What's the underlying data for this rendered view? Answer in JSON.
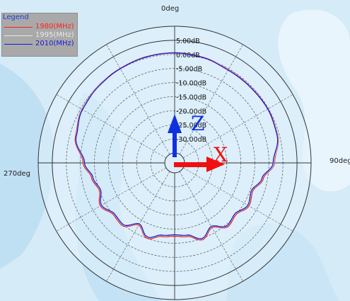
{
  "chart_data": {
    "type": "polar",
    "title": "",
    "angle_labels": [
      "0deg",
      "90deg",
      "270deg"
    ],
    "radial_unit": "dB",
    "ring_labels": [
      "5.00dB",
      "0.00dB",
      "-5.00dB",
      "-10.00dB",
      "-15.00dB",
      "-20.00dB",
      "-25.00dB",
      "-30.00dB"
    ],
    "ring_values": [
      5,
      0,
      -5,
      -10,
      -15,
      -20,
      -25,
      -30
    ],
    "radial_range": [
      -35,
      10
    ],
    "legend": {
      "title": "Legend",
      "placement": "top-left",
      "entries": [
        {
          "label": "1980(MHz)",
          "color": "#ff2020"
        },
        {
          "label": "1995(MHz)",
          "color": "#e8e8e8"
        },
        {
          "label": "2010(MHz)",
          "color": "#1a1ad8"
        }
      ]
    },
    "series": [
      {
        "name": "1980(MHz)",
        "color": "#e81010",
        "angles": [
          0,
          15,
          30,
          45,
          60,
          75,
          90,
          100,
          110,
          120,
          130,
          140,
          150,
          160,
          170,
          180,
          190,
          200,
          210,
          220,
          230,
          240,
          250,
          260,
          270,
          285,
          300,
          315,
          330,
          345,
          360
        ],
        "values": [
          0.6,
          0.3,
          -0.3,
          -0.3,
          -0.2,
          -0.6,
          -3.0,
          -6.5,
          -9.0,
          -8.0,
          -10.0,
          -9.0,
          -12.0,
          -9.5,
          -12.0,
          -12.5,
          -12.0,
          -10.0,
          -13.0,
          -9.5,
          -10.0,
          -8.0,
          -10.0,
          -8.5,
          -6.0,
          -2.0,
          -0.5,
          0.0,
          0.2,
          0.5,
          0.6
        ]
      },
      {
        "name": "1995(MHz)",
        "color": "#d8d8e0",
        "angles": [
          0,
          15,
          30,
          45,
          60,
          75,
          90,
          100,
          110,
          120,
          130,
          140,
          150,
          160,
          170,
          180,
          190,
          200,
          210,
          220,
          230,
          240,
          250,
          260,
          270,
          285,
          300,
          315,
          330,
          345,
          360
        ],
        "values": [
          0.5,
          0.2,
          -0.4,
          -0.4,
          -0.3,
          -0.7,
          -3.2,
          -6.8,
          -9.3,
          -8.3,
          -10.3,
          -9.3,
          -12.3,
          -9.8,
          -12.3,
          -12.8,
          -12.3,
          -10.3,
          -13.3,
          -9.8,
          -10.3,
          -8.3,
          -10.3,
          -8.8,
          -6.3,
          -2.2,
          -0.6,
          -0.1,
          0.1,
          0.4,
          0.5
        ]
      },
      {
        "name": "2010(MHz)",
        "color": "#1010c8",
        "angles": [
          0,
          15,
          30,
          45,
          60,
          75,
          90,
          100,
          110,
          120,
          130,
          140,
          150,
          160,
          170,
          180,
          190,
          200,
          210,
          220,
          230,
          240,
          250,
          260,
          270,
          285,
          300,
          315,
          330,
          345,
          360
        ],
        "values": [
          0.5,
          0.2,
          -0.5,
          -0.5,
          -0.3,
          -0.8,
          -3.5,
          -7.0,
          -9.5,
          -8.5,
          -10.5,
          -9.5,
          -12.5,
          -10.0,
          -12.5,
          -13.0,
          -12.5,
          -10.5,
          -13.5,
          -10.0,
          -10.5,
          -8.5,
          -10.5,
          -9.0,
          -6.5,
          -2.3,
          -0.7,
          -0.2,
          0.1,
          0.4,
          0.5
        ]
      }
    ],
    "axes_triad": {
      "z_label": "Z",
      "x_label": "X",
      "z_color": "#1030e0",
      "x_color": "#f01010"
    }
  }
}
